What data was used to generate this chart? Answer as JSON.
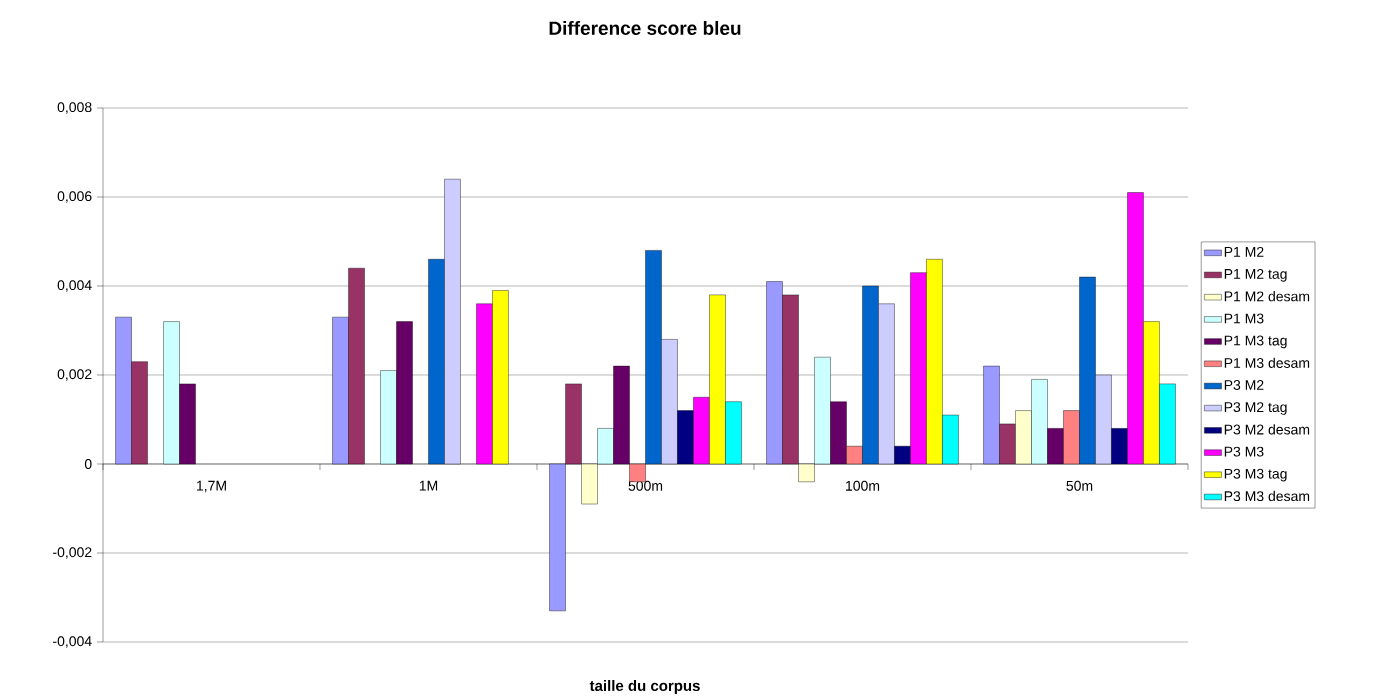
{
  "chart_data": {
    "type": "bar",
    "title": "Difference score bleu",
    "xlabel": "taille du corpus",
    "categories": [
      "1,7M",
      "1M",
      "500m",
      "100m",
      "50m"
    ],
    "series": [
      {
        "name": "P1 M2",
        "color": "#9999ff",
        "values": [
          0.0033,
          0.0033,
          -0.0033,
          0.0041,
          0.0022
        ]
      },
      {
        "name": "P1 M2 tag",
        "color": "#993366",
        "values": [
          0.0023,
          0.0044,
          0.0018,
          0.0038,
          0.0009
        ]
      },
      {
        "name": "P1 M2 desam",
        "color": "#ffffcc",
        "values": [
          null,
          null,
          -0.0009,
          -0.0004,
          0.0012
        ]
      },
      {
        "name": "P1 M3",
        "color": "#ccffff",
        "values": [
          0.0032,
          0.0021,
          0.0008,
          0.0024,
          0.0019
        ]
      },
      {
        "name": "P1 M3 tag",
        "color": "#660066",
        "values": [
          0.0018,
          0.0032,
          0.0022,
          0.0014,
          0.0008
        ]
      },
      {
        "name": "P1 M3 desam",
        "color": "#ff8080",
        "values": [
          null,
          null,
          -0.0004,
          0.0004,
          0.0012
        ]
      },
      {
        "name": "P3 M2",
        "color": "#0066cc",
        "values": [
          null,
          0.0046,
          0.0048,
          0.004,
          0.0042
        ]
      },
      {
        "name": "P3 M2 tag",
        "color": "#ccccff",
        "values": [
          null,
          0.0064,
          0.0028,
          0.0036,
          0.002
        ]
      },
      {
        "name": "P3 M2 desam",
        "color": "#000080",
        "values": [
          null,
          null,
          0.0012,
          0.0004,
          0.0008
        ]
      },
      {
        "name": "P3 M3",
        "color": "#ff00ff",
        "values": [
          null,
          0.0036,
          0.0015,
          0.0043,
          0.0061
        ]
      },
      {
        "name": "P3 M3 tag",
        "color": "#ffff00",
        "values": [
          null,
          0.0039,
          0.0038,
          0.0046,
          0.0032
        ]
      },
      {
        "name": "P3 M3 desam",
        "color": "#00ffff",
        "values": [
          null,
          null,
          0.0014,
          0.0011,
          0.0018
        ]
      }
    ],
    "ylim": [
      -0.004,
      0.008
    ],
    "yticks": [
      {
        "value": -0.004,
        "label": "-0,004"
      },
      {
        "value": -0.002,
        "label": "-0,002"
      },
      {
        "value": 0,
        "label": "0"
      },
      {
        "value": 0.002,
        "label": "0,002"
      },
      {
        "value": 0.004,
        "label": "0,004"
      },
      {
        "value": 0.006,
        "label": "0,006"
      },
      {
        "value": 0.008,
        "label": "0,008"
      }
    ],
    "grid": "y",
    "legend": "right"
  }
}
